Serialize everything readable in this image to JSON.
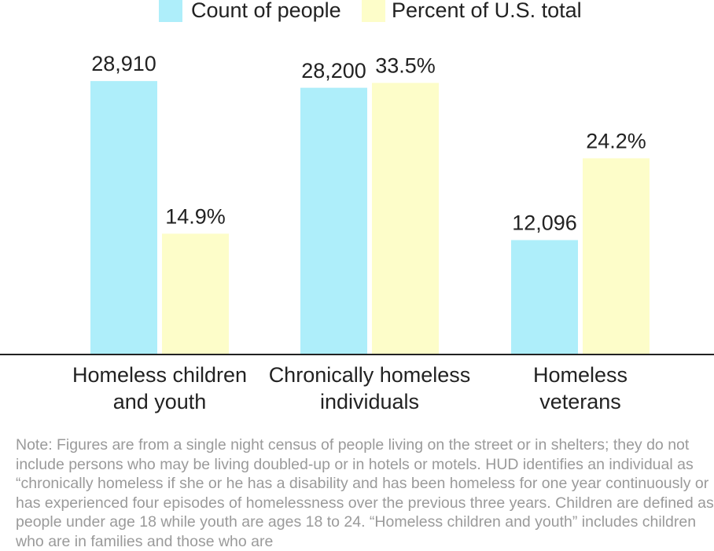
{
  "chart_data": {
    "type": "bar",
    "categories": [
      "Homeless children\nand youth",
      "Chronically homeless\nindividuals",
      "Homeless\nveterans"
    ],
    "series": [
      {
        "name": "Count of people",
        "color": "#aeeefa",
        "values": [
          28910,
          28200,
          12096
        ],
        "value_labels": [
          "28,910",
          "28,200",
          "12,096"
        ]
      },
      {
        "name": "Percent of U.S. total",
        "color": "#fdfdc9",
        "values": [
          14.9,
          33.5,
          24.2
        ],
        "value_labels": [
          "14.9%",
          "33.5%",
          "24.2%"
        ],
        "axis": "y2"
      }
    ],
    "ylim": [
      0,
      30000
    ],
    "y2lim": [
      0,
      35
    ],
    "note": "Note: Figures are from a single night census of people living on the street or in shelters; they do not include persons who may be living doubled-up or in hotels or motels. HUD identifies an individual as “chronically homeless if she or he has a disability and has been homeless for one year continuously or has experienced four episodes of homelessness over the previous three years. Children are defined as people under age 18 while youth are ages 18 to 24. “Homeless children and youth” includes children who are in families and those who are"
  }
}
